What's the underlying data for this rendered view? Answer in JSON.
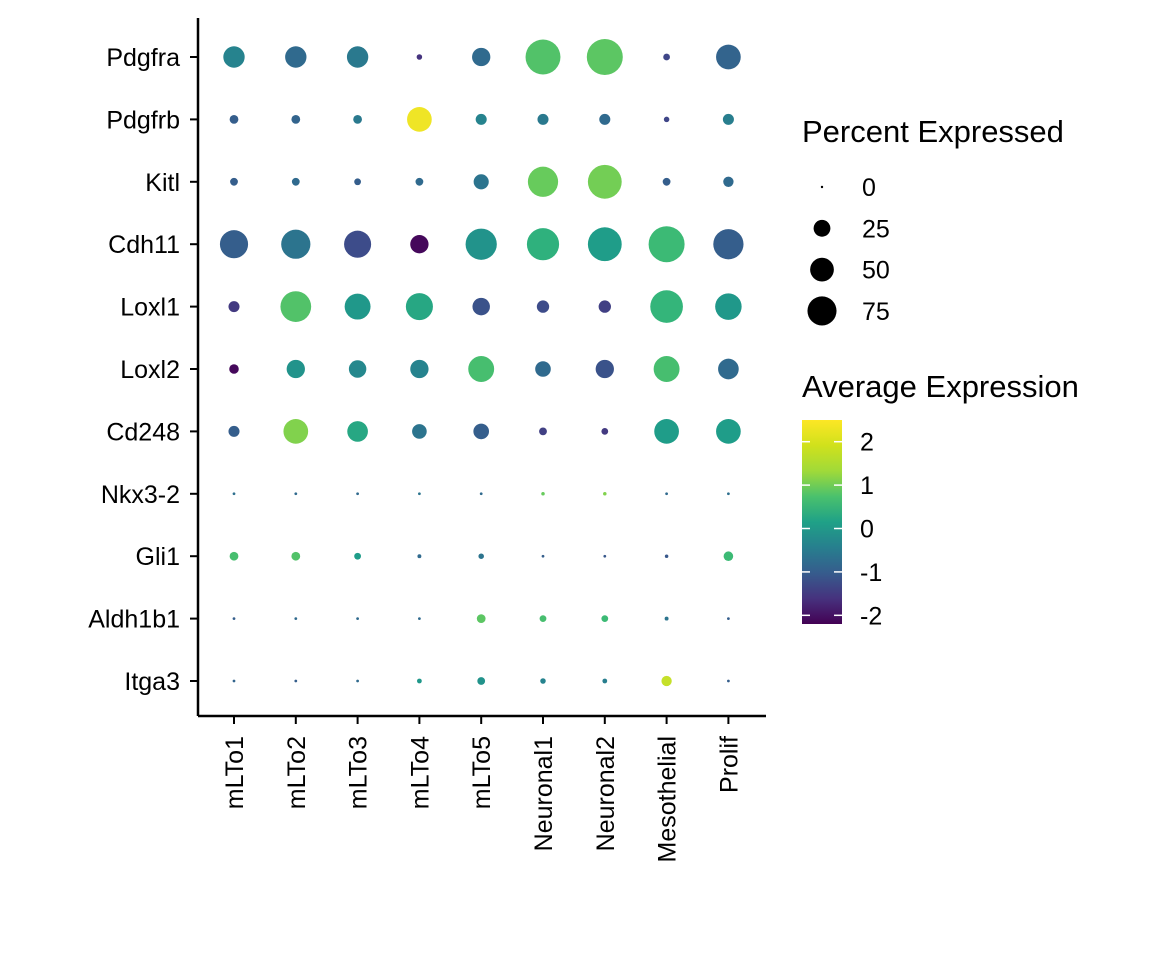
{
  "chart_data": {
    "type": "dot",
    "genes": [
      "Pdgfra",
      "Pdgfrb",
      "Kitl",
      "Cdh11",
      "Loxl1",
      "Loxl2",
      "Cd248",
      "Nkx3-2",
      "Gli1",
      "Aldh1b1",
      "Itga3"
    ],
    "clusters": [
      "mLTo1",
      "mLTo2",
      "mLTo3",
      "mLTo4",
      "mLTo5",
      "Neuronal1",
      "Neuronal2",
      "Mesothelial",
      "Prolif"
    ],
    "percent_expressed": [
      [
        30,
        30,
        30,
        2,
        22,
        80,
        85,
        3,
        40
      ],
      [
        5,
        5,
        5,
        40,
        8,
        8,
        8,
        2,
        8
      ],
      [
        4,
        4,
        3,
        4,
        15,
        60,
        75,
        4,
        7
      ],
      [
        52,
        56,
        48,
        22,
        64,
        68,
        75,
        85,
        60
      ],
      [
        8,
        62,
        44,
        48,
        20,
        10,
        10,
        70,
        46
      ],
      [
        6,
        22,
        20,
        22,
        44,
        16,
        22,
        44,
        28
      ],
      [
        8,
        40,
        28,
        14,
        16,
        4,
        3,
        40,
        40
      ],
      [
        0.5,
        0.5,
        0.5,
        0.5,
        0.5,
        0.8,
        0.8,
        0.5,
        0.5
      ],
      [
        5,
        5,
        3,
        1,
        2,
        0.5,
        0.5,
        0.8,
        6
      ],
      [
        0.5,
        0.5,
        0.5,
        0.5,
        5,
        3,
        3,
        1,
        0.5
      ],
      [
        0.5,
        0.5,
        0.5,
        1.5,
        4,
        2,
        1.5,
        7,
        0.5
      ]
    ],
    "average_expression": [
      [
        -0.1,
        -0.6,
        -0.3,
        -1.5,
        -0.6,
        1.2,
        1.3,
        -1.2,
        -0.7
      ],
      [
        -0.8,
        -0.7,
        -0.3,
        2.4,
        -0.1,
        -0.3,
        -0.6,
        -1.2,
        -0.2
      ],
      [
        -0.8,
        -0.6,
        -0.8,
        -0.6,
        -0.4,
        1.4,
        1.5,
        -0.8,
        -0.6
      ],
      [
        -0.8,
        -0.4,
        -1.1,
        -2.1,
        0.2,
        0.8,
        0.4,
        1.0,
        -0.8
      ],
      [
        -1.4,
        1.2,
        0.3,
        0.6,
        -1.0,
        -1.1,
        -1.3,
        0.9,
        0.3
      ],
      [
        -2.1,
        0.2,
        0.0,
        -0.1,
        1.1,
        -0.6,
        -1.0,
        1.1,
        -0.6
      ],
      [
        -0.8,
        1.6,
        0.6,
        -0.4,
        -0.8,
        -1.3,
        -1.4,
        0.4,
        0.4
      ],
      [
        -0.5,
        -0.6,
        -0.6,
        -0.4,
        -0.6,
        1.4,
        1.6,
        -0.6,
        -0.5
      ],
      [
        1.1,
        1.2,
        0.4,
        -0.6,
        -0.4,
        -0.8,
        -0.9,
        -0.9,
        1.0
      ],
      [
        -0.8,
        -0.6,
        -0.6,
        -0.6,
        1.3,
        1.1,
        1.0,
        -0.4,
        -0.8
      ],
      [
        -0.7,
        -0.8,
        -0.6,
        0.3,
        0.2,
        -0.1,
        -0.2,
        2.1,
        -0.8
      ]
    ],
    "size_legend": {
      "title": "Percent Expressed",
      "breaks": [
        0,
        25,
        50,
        75
      ],
      "labels": [
        "0",
        "25",
        "50",
        "75"
      ]
    },
    "color_legend": {
      "title": "Average Expression",
      "limits": [
        -2.2,
        2.5
      ],
      "breaks": [
        2,
        1,
        0,
        -1,
        -2
      ],
      "labels": [
        "2",
        "1",
        "0",
        "-1",
        "-2"
      ],
      "colormap": "viridis"
    },
    "size_range": [
      0,
      85
    ],
    "grid": false,
    "legend_position": "right"
  }
}
